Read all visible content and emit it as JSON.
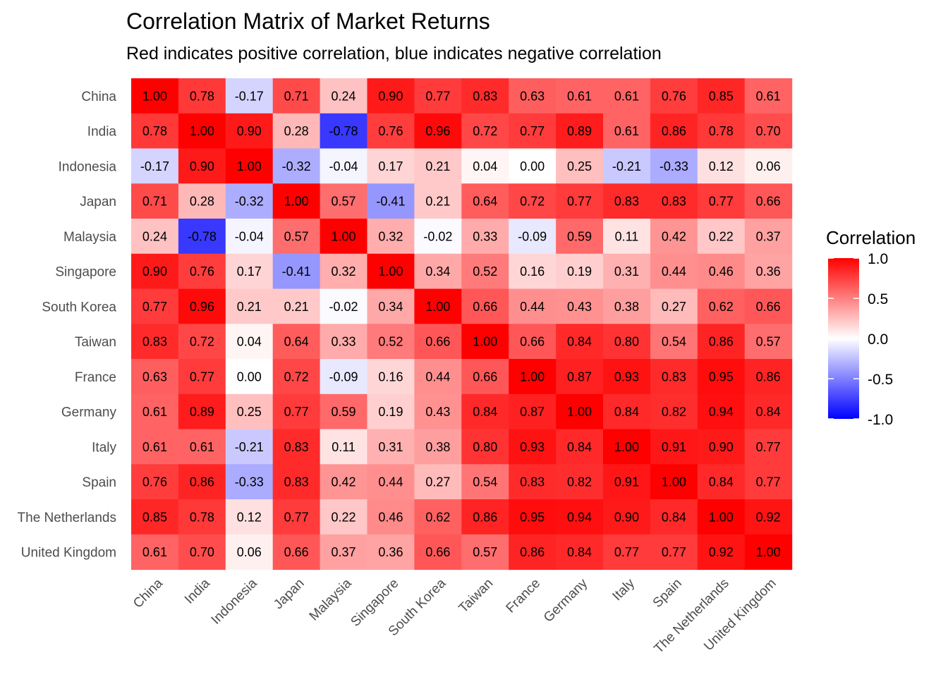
{
  "chart_data": {
    "type": "heatmap",
    "title": "Correlation Matrix of Market Returns",
    "subtitle": "Red indicates positive correlation, blue indicates negative correlation",
    "categories": [
      "China",
      "India",
      "Indonesia",
      "Japan",
      "Malaysia",
      "Singapore",
      "South Korea",
      "Taiwan",
      "France",
      "Germany",
      "Italy",
      "Spain",
      "The Netherlands",
      "United Kingdom"
    ],
    "values": [
      [
        1.0,
        0.78,
        -0.17,
        0.71,
        0.24,
        0.9,
        0.77,
        0.83,
        0.63,
        0.61,
        0.61,
        0.76,
        0.85,
        0.61
      ],
      [
        0.78,
        1.0,
        0.9,
        0.28,
        -0.78,
        0.76,
        0.96,
        0.72,
        0.77,
        0.89,
        0.61,
        0.86,
        0.78,
        0.7
      ],
      [
        -0.17,
        0.9,
        1.0,
        -0.32,
        -0.04,
        0.17,
        0.21,
        0.04,
        0.0,
        0.25,
        -0.21,
        -0.33,
        0.12,
        0.06
      ],
      [
        0.71,
        0.28,
        -0.32,
        1.0,
        0.57,
        -0.41,
        0.21,
        0.64,
        0.72,
        0.77,
        0.83,
        0.83,
        0.77,
        0.66
      ],
      [
        0.24,
        -0.78,
        -0.04,
        0.57,
        1.0,
        0.32,
        -0.02,
        0.33,
        -0.09,
        0.59,
        0.11,
        0.42,
        0.22,
        0.37
      ],
      [
        0.9,
        0.76,
        0.17,
        -0.41,
        0.32,
        1.0,
        0.34,
        0.52,
        0.16,
        0.19,
        0.31,
        0.44,
        0.46,
        0.36
      ],
      [
        0.77,
        0.96,
        0.21,
        0.21,
        -0.02,
        0.34,
        1.0,
        0.66,
        0.44,
        0.43,
        0.38,
        0.27,
        0.62,
        0.66
      ],
      [
        0.83,
        0.72,
        0.04,
        0.64,
        0.33,
        0.52,
        0.66,
        1.0,
        0.66,
        0.84,
        0.8,
        0.54,
        0.86,
        0.57
      ],
      [
        0.63,
        0.77,
        0.0,
        0.72,
        -0.09,
        0.16,
        0.44,
        0.66,
        1.0,
        0.87,
        0.93,
        0.83,
        0.95,
        0.86
      ],
      [
        0.61,
        0.89,
        0.25,
        0.77,
        0.59,
        0.19,
        0.43,
        0.84,
        0.87,
        1.0,
        0.84,
        0.82,
        0.94,
        0.84
      ],
      [
        0.61,
        0.61,
        -0.21,
        0.83,
        0.11,
        0.31,
        0.38,
        0.8,
        0.93,
        0.84,
        1.0,
        0.91,
        0.9,
        0.77
      ],
      [
        0.76,
        0.86,
        -0.33,
        0.83,
        0.42,
        0.44,
        0.27,
        0.54,
        0.83,
        0.82,
        0.91,
        1.0,
        0.84,
        0.77
      ],
      [
        0.85,
        0.78,
        0.12,
        0.77,
        0.22,
        0.46,
        0.62,
        0.86,
        0.95,
        0.94,
        0.9,
        0.84,
        1.0,
        0.92
      ],
      [
        0.61,
        0.7,
        0.06,
        0.66,
        0.37,
        0.36,
        0.66,
        0.57,
        0.86,
        0.84,
        0.77,
        0.77,
        0.92,
        1.0
      ]
    ],
    "legend": {
      "title": "Correlation",
      "ticks": [
        "1.0",
        "0.5",
        "0.0",
        "-0.5",
        "-1.0"
      ],
      "range": [
        -1,
        1
      ],
      "placement": "right"
    },
    "colors": {
      "low": "#0000ff",
      "mid": "#ffffff",
      "high": "#ff0000"
    },
    "grid": false
  }
}
